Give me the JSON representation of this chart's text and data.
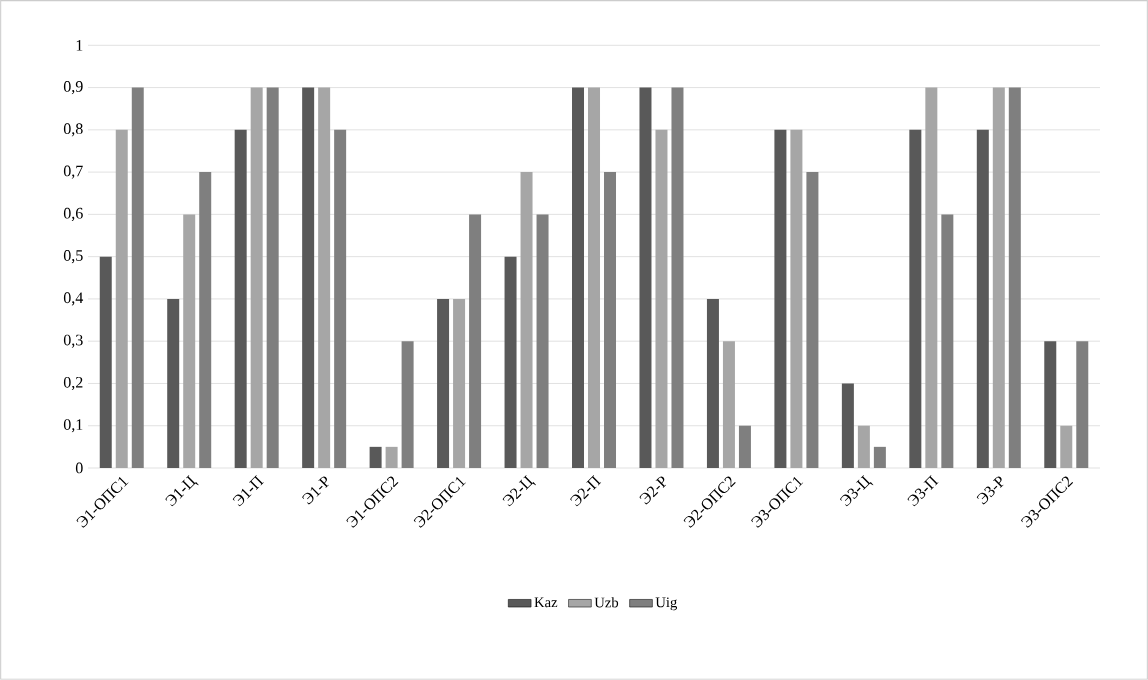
{
  "chart_data": {
    "type": "bar",
    "categories": [
      "Э1-ОПС1",
      "Э1-Ц",
      "Э1-П",
      "Э1-Р",
      "Э1-ОПС2",
      "Э2-ОПС1",
      "Э2-Ц",
      "Э2-П",
      "Э2-Р",
      "Э2-ОПС2",
      "Э3-ОПС1",
      "Э3-Ц",
      "Э3-П",
      "Э3-Р",
      "Э3-ОПС2"
    ],
    "series": [
      {
        "name": "Kaz",
        "color": "#595959",
        "values": [
          0.5,
          0.4,
          0.8,
          0.9,
          0.05,
          0.4,
          0.5,
          0.9,
          0.9,
          0.4,
          0.8,
          0.2,
          0.8,
          0.8,
          0.3
        ]
      },
      {
        "name": "Uzb",
        "color": "#a6a6a6",
        "values": [
          0.8,
          0.6,
          0.9,
          0.9,
          0.05,
          0.4,
          0.7,
          0.9,
          0.8,
          0.3,
          0.8,
          0.1,
          0.9,
          0.9,
          0.1
        ]
      },
      {
        "name": "Uig",
        "color": "#7f7f7f",
        "values": [
          0.9,
          0.7,
          0.9,
          0.8,
          0.3,
          0.6,
          0.6,
          0.7,
          0.9,
          0.1,
          0.7,
          0.05,
          0.6,
          0.9,
          0.3
        ]
      }
    ],
    "ylim": [
      0,
      1
    ],
    "yticks": [
      0,
      {
        "value": 0.1,
        "label": "0,1"
      },
      {
        "value": 0.2,
        "label": "0,2"
      },
      {
        "value": 0.3,
        "label": "0,3"
      },
      {
        "value": 0.4,
        "label": "0,4"
      },
      {
        "value": 0.5,
        "label": "0,5"
      },
      {
        "value": 0.6,
        "label": "0,6"
      },
      {
        "value": 0.7,
        "label": "0,7"
      },
      {
        "value": 0.8,
        "label": "0,8"
      },
      {
        "value": 0.9,
        "label": "0,9"
      },
      1
    ],
    "grid": "y",
    "legend": "bottom"
  }
}
